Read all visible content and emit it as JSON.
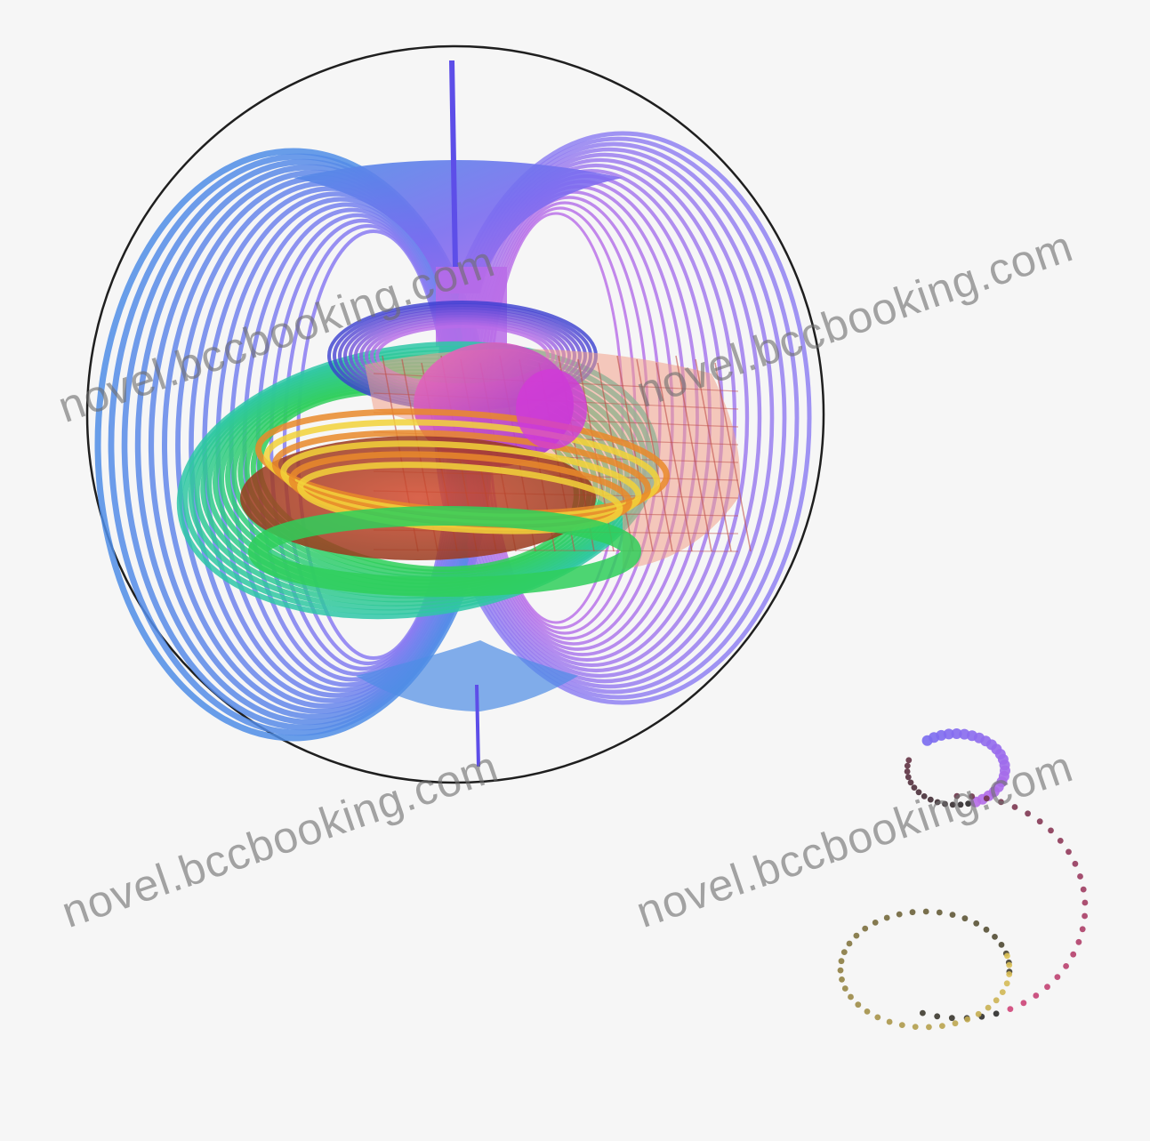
{
  "figure": {
    "sphere_outline_color": "#1f1f1f",
    "axis_color": "#5d4ee8",
    "palette": {
      "blue": "#4f8de6",
      "violet": "#8a7bf2",
      "purple": "#b86be8",
      "pink": "#ee6fb4",
      "salmon": "#f2a08a",
      "magenta": "#d23ad8",
      "green": "#2fcf5a",
      "teal": "#2fc7a7",
      "yellow": "#f2d23a",
      "orange": "#e98a2a",
      "red": "#d44a2e"
    }
  },
  "watermarks": [
    {
      "text": "novel.bccbooking.com"
    },
    {
      "text": "novel.bccbooking.com"
    },
    {
      "text": "novel.bccbooking.com"
    },
    {
      "text": "novel.bccbooking.com"
    }
  ]
}
